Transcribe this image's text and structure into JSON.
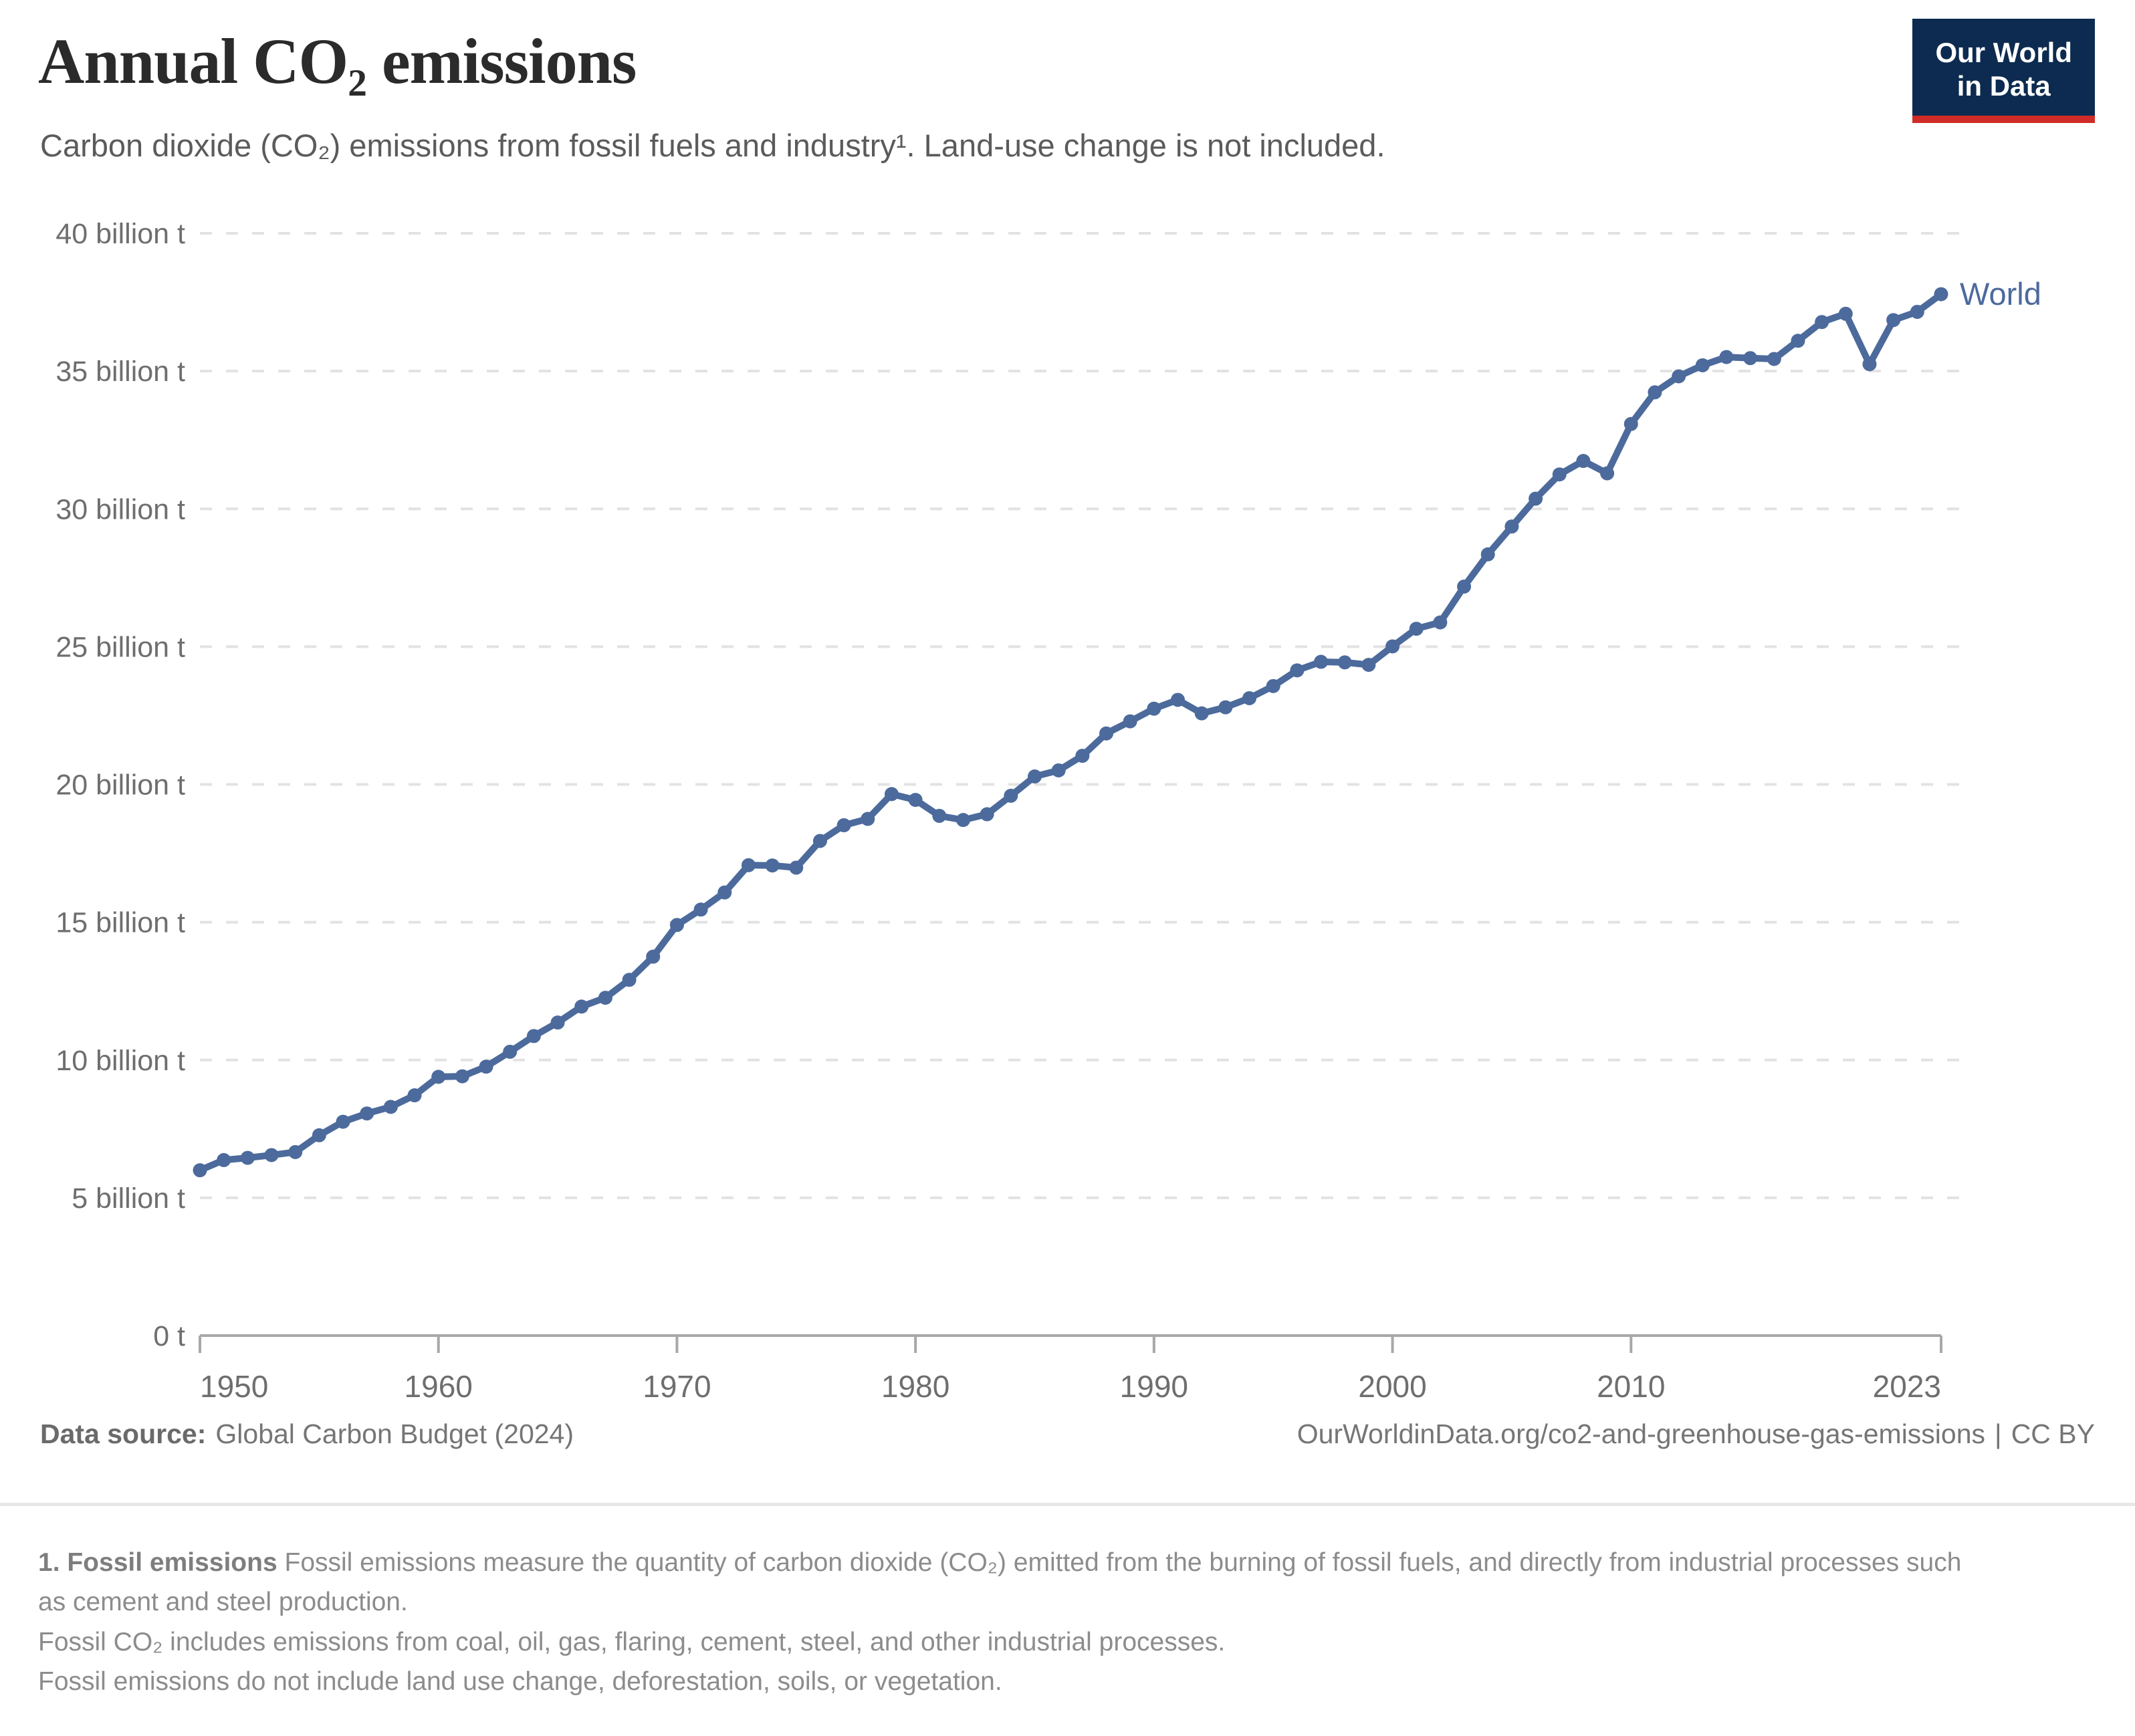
{
  "header": {
    "title": "Annual CO₂ emissions",
    "subtitle": "Carbon dioxide (CO₂) emissions from fossil fuels and industry¹. Land-use change is not included.",
    "logo": {
      "line1": "Our World",
      "line2": "in Data"
    }
  },
  "chart_data": {
    "type": "line",
    "title": "Annual CO₂ emissions",
    "unit": "billion t",
    "xlabel": "",
    "ylabel": "",
    "xlim": [
      1950,
      2023
    ],
    "ylim": [
      0,
      40
    ],
    "grid": "horizontal-dashed",
    "legend_position": "end-of-line",
    "x": [
      1950,
      1951,
      1952,
      1953,
      1954,
      1955,
      1956,
      1957,
      1958,
      1959,
      1960,
      1961,
      1962,
      1963,
      1964,
      1965,
      1966,
      1967,
      1968,
      1969,
      1970,
      1971,
      1972,
      1973,
      1974,
      1975,
      1976,
      1977,
      1978,
      1979,
      1980,
      1981,
      1982,
      1983,
      1984,
      1985,
      1986,
      1987,
      1988,
      1989,
      1990,
      1991,
      1992,
      1993,
      1994,
      1995,
      1996,
      1997,
      1998,
      1999,
      2000,
      2001,
      2002,
      2003,
      2004,
      2005,
      2006,
      2007,
      2008,
      2009,
      2010,
      2011,
      2012,
      2013,
      2014,
      2015,
      2016,
      2017,
      2018,
      2019,
      2020,
      2021,
      2022,
      2023
    ],
    "series": [
      {
        "name": "World",
        "color": "#4c6a9c",
        "values": [
          6.0,
          6.37,
          6.45,
          6.55,
          6.66,
          7.27,
          7.76,
          8.06,
          8.3,
          8.72,
          9.39,
          9.41,
          9.76,
          10.3,
          10.87,
          11.36,
          11.94,
          12.26,
          12.91,
          13.75,
          14.9,
          15.46,
          16.08,
          17.07,
          17.06,
          16.98,
          17.95,
          18.52,
          18.75,
          19.65,
          19.44,
          18.86,
          18.71,
          18.92,
          19.59,
          20.29,
          20.51,
          21.04,
          21.85,
          22.29,
          22.75,
          23.07,
          22.58,
          22.8,
          23.13,
          23.57,
          24.14,
          24.45,
          24.43,
          24.34,
          25.01,
          25.65,
          25.88,
          27.18,
          28.35,
          29.36,
          30.37,
          31.25,
          31.74,
          31.29,
          33.08,
          34.23,
          34.81,
          35.21,
          35.51,
          35.47,
          35.44,
          36.1,
          36.78,
          37.08,
          35.25,
          36.85,
          37.15,
          37.79
        ]
      }
    ],
    "yticks": [
      {
        "value": 0,
        "label": "0 t"
      },
      {
        "value": 5,
        "label": "5 billion t"
      },
      {
        "value": 10,
        "label": "10 billion t"
      },
      {
        "value": 15,
        "label": "15 billion t"
      },
      {
        "value": 20,
        "label": "20 billion t"
      },
      {
        "value": 25,
        "label": "25 billion t"
      },
      {
        "value": 30,
        "label": "30 billion t"
      },
      {
        "value": 35,
        "label": "35 billion t"
      },
      {
        "value": 40,
        "label": "40 billion t"
      }
    ],
    "xticks": [
      {
        "value": 1950,
        "label": "1950",
        "align": "start"
      },
      {
        "value": 1960,
        "label": "1960"
      },
      {
        "value": 1970,
        "label": "1970"
      },
      {
        "value": 1980,
        "label": "1980"
      },
      {
        "value": 1990,
        "label": "1990"
      },
      {
        "value": 2000,
        "label": "2000"
      },
      {
        "value": 2010,
        "label": "2010"
      },
      {
        "value": 2023,
        "label": "2023",
        "align": "end"
      }
    ]
  },
  "footer": {
    "source_label": "Data source:",
    "source_value": "Global Carbon Budget (2024)",
    "url": "OurWorldinData.org/co2-and-greenhouse-gas-emissions",
    "separator": "|",
    "license": "CC BY"
  },
  "footnote": {
    "label": "1. Fossil emissions",
    "text1": "Fossil emissions measure the quantity of carbon dioxide (CO₂) emitted from the burning of fossil fuels, and directly from industrial processes such as cement and steel production.",
    "text2": "Fossil CO₂ includes emissions from coal, oil, gas, flaring, cement, steel, and other industrial processes.",
    "text3": "Fossil emissions do not include land use change, deforestation, soils, or vegetation."
  },
  "colors": {
    "line": "#4c6a9c",
    "grid": "#e2e2e2",
    "axis": "#a8a8a8",
    "tick_label": "#6e6e6e",
    "title": "#2b2b2b",
    "subtitle": "#5b5b5b",
    "logo_bg": "#0d2b50",
    "logo_red": "#cf2c27",
    "logo_text": "#ffffff"
  }
}
